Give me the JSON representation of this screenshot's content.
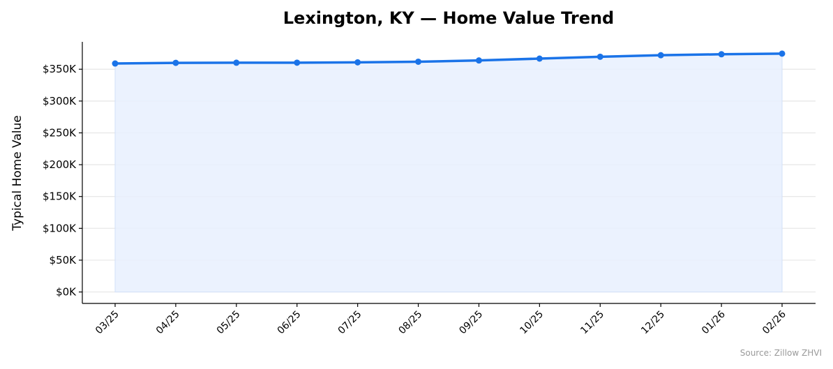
{
  "chart_data": {
    "type": "area",
    "title": "Lexington, KY — Home Value Trend",
    "xlabel": "",
    "ylabel": "Typical Home Value",
    "source": "Source: Zillow ZHVI",
    "categories": [
      "03/25",
      "04/25",
      "05/25",
      "06/25",
      "07/25",
      "08/25",
      "09/25",
      "10/25",
      "11/25",
      "12/25",
      "01/26",
      "02/26"
    ],
    "values": [
      359000,
      360000,
      360200,
      360300,
      360800,
      361800,
      363800,
      366700,
      369600,
      372000,
      373500,
      374500
    ],
    "y_ticks": [
      0,
      50000,
      100000,
      150000,
      200000,
      250000,
      300000,
      350000
    ],
    "y_tick_labels": [
      "$0K",
      "$50K",
      "$100K",
      "$150K",
      "$200K",
      "$250K",
      "$300K",
      "$350K"
    ],
    "ylim": [
      -18000,
      393000
    ],
    "grid": "horizontal",
    "colors": {
      "line": "#1a73e8",
      "fill": "#e8f0fe",
      "grid": "#e6e6e6",
      "source": "#999999"
    }
  }
}
